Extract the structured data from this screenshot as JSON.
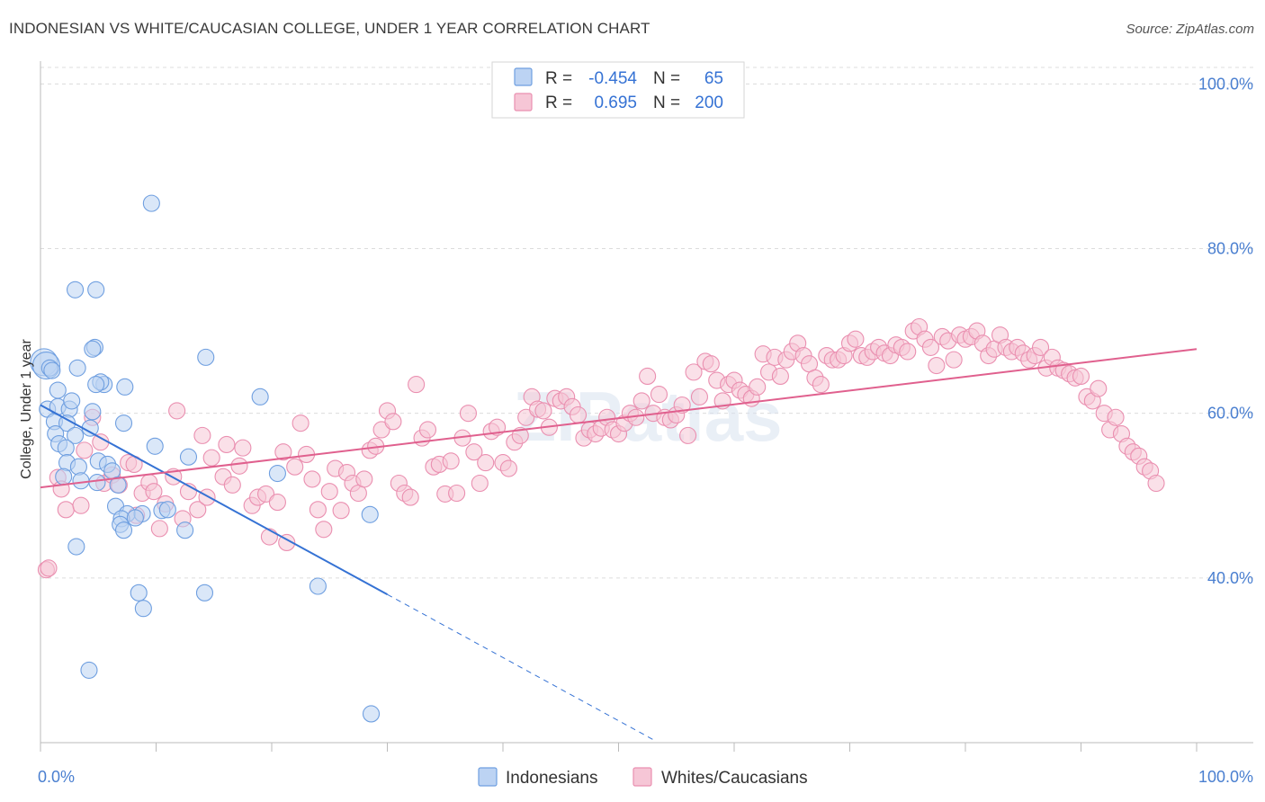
{
  "header": {
    "title": "INDONESIAN VS WHITE/CAUCASIAN COLLEGE, UNDER 1 YEAR CORRELATION CHART",
    "source": "Source: ZipAtlas.com"
  },
  "watermark": "ZIPatlas",
  "colors": {
    "indonesians": "#6f9fe0",
    "indonesians_fill": "#bcd3f3",
    "indonesians_line": "#3572d4",
    "whites": "#ea8fb0",
    "whites_fill": "#f6c6d6",
    "whites_line": "#e0608e",
    "tick_text": "#4a7fd0"
  },
  "legend": {
    "rows": [
      {
        "r_label": "R =",
        "r_value": "-0.454",
        "n_label": "N =",
        "n_value": "65"
      },
      {
        "r_label": "R =",
        "r_value": "0.695",
        "n_label": "N =",
        "n_value": "200"
      }
    ]
  },
  "chart_data": {
    "type": "scatter",
    "ylabel": "College, Under 1 year",
    "xlabel": "",
    "x_tick_labels": [
      "0.0%",
      "100.0%"
    ],
    "y_tick_labels": [
      "40.0%",
      "60.0%",
      "80.0%",
      "100.0%"
    ],
    "xlim": [
      0,
      100
    ],
    "ylim": [
      20,
      102
    ],
    "series": [
      {
        "name": "Indonesians",
        "trend": {
          "x": [
            0,
            30
          ],
          "y": [
            61.0,
            38.0
          ],
          "dashed_to_x": 53
        },
        "points": [
          [
            0.3,
            66.2
          ],
          [
            0.5,
            65.8
          ],
          [
            0.8,
            65.5
          ],
          [
            1.0,
            65.2
          ],
          [
            0.6,
            60.5
          ],
          [
            1.5,
            60.8
          ],
          [
            2.5,
            60.5
          ],
          [
            1.2,
            59.0
          ],
          [
            2.3,
            58.8
          ],
          [
            3.0,
            57.3
          ],
          [
            1.3,
            57.5
          ],
          [
            1.6,
            56.3
          ],
          [
            2.2,
            55.8
          ],
          [
            4.5,
            60.2
          ],
          [
            2.7,
            61.5
          ],
          [
            1.5,
            62.8
          ],
          [
            3.2,
            65.5
          ],
          [
            5.5,
            63.5
          ],
          [
            4.3,
            58.2
          ],
          [
            5.2,
            63.8
          ],
          [
            7.3,
            63.2
          ],
          [
            7.2,
            58.8
          ],
          [
            4.8,
            63.5
          ],
          [
            2.3,
            54.0
          ],
          [
            3.3,
            53.5
          ],
          [
            2.0,
            52.3
          ],
          [
            3.5,
            51.8
          ],
          [
            5.0,
            54.2
          ],
          [
            5.8,
            53.8
          ],
          [
            6.2,
            53.0
          ],
          [
            4.9,
            51.6
          ],
          [
            6.7,
            51.3
          ],
          [
            6.5,
            48.7
          ],
          [
            7.5,
            47.8
          ],
          [
            8.8,
            47.8
          ],
          [
            10.5,
            48.2
          ],
          [
            7.0,
            47.2
          ],
          [
            8.2,
            47.3
          ],
          [
            6.9,
            46.5
          ],
          [
            7.2,
            45.8
          ],
          [
            12.5,
            45.8
          ],
          [
            12.8,
            54.7
          ],
          [
            9.9,
            56.0
          ],
          [
            9.6,
            85.5
          ],
          [
            4.7,
            68.0
          ],
          [
            4.5,
            67.8
          ],
          [
            3.0,
            75.0
          ],
          [
            4.8,
            75.0
          ],
          [
            14.3,
            66.8
          ],
          [
            19.0,
            62.0
          ],
          [
            20.5,
            52.7
          ],
          [
            28.5,
            47.7
          ],
          [
            3.1,
            43.8
          ],
          [
            8.5,
            38.2
          ],
          [
            14.2,
            38.2
          ],
          [
            8.9,
            36.3
          ],
          [
            24.0,
            39.0
          ],
          [
            4.2,
            28.8
          ],
          [
            28.6,
            23.5
          ],
          [
            11.0,
            48.3
          ]
        ]
      },
      {
        "name": "Whites/Caucasians",
        "trend": {
          "x": [
            0,
            100
          ],
          "y": [
            51.0,
            67.8
          ]
        },
        "points": [
          [
            0.5,
            41.0
          ],
          [
            0.7,
            41.2
          ],
          [
            1.5,
            52.2
          ],
          [
            1.8,
            50.8
          ],
          [
            2.2,
            48.3
          ],
          [
            3.5,
            48.8
          ],
          [
            3.8,
            55.5
          ],
          [
            4.5,
            59.5
          ],
          [
            5.2,
            56.5
          ],
          [
            5.5,
            51.5
          ],
          [
            6.2,
            52.5
          ],
          [
            6.8,
            51.3
          ],
          [
            7.6,
            54.0
          ],
          [
            8.1,
            53.8
          ],
          [
            8.3,
            47.6
          ],
          [
            8.8,
            50.3
          ],
          [
            9.4,
            51.6
          ],
          [
            9.8,
            50.5
          ],
          [
            10.3,
            46.0
          ],
          [
            10.8,
            49.0
          ],
          [
            11.5,
            52.3
          ],
          [
            11.8,
            60.3
          ],
          [
            12.3,
            47.2
          ],
          [
            12.8,
            50.5
          ],
          [
            13.6,
            48.3
          ],
          [
            14.0,
            57.3
          ],
          [
            14.4,
            49.8
          ],
          [
            14.8,
            54.6
          ],
          [
            15.8,
            52.3
          ],
          [
            16.1,
            56.2
          ],
          [
            16.6,
            51.3
          ],
          [
            17.2,
            53.6
          ],
          [
            17.5,
            55.8
          ],
          [
            18.3,
            48.8
          ],
          [
            18.8,
            49.8
          ],
          [
            19.5,
            50.2
          ],
          [
            19.8,
            45.0
          ],
          [
            20.5,
            49.2
          ],
          [
            21.0,
            55.3
          ],
          [
            21.3,
            44.3
          ],
          [
            22.0,
            53.5
          ],
          [
            22.5,
            58.8
          ],
          [
            23.0,
            55.0
          ],
          [
            23.5,
            52.0
          ],
          [
            24.0,
            48.3
          ],
          [
            24.5,
            45.9
          ],
          [
            25.0,
            50.5
          ],
          [
            25.5,
            53.3
          ],
          [
            26.0,
            48.2
          ],
          [
            26.5,
            52.8
          ],
          [
            27.0,
            51.5
          ],
          [
            27.5,
            50.3
          ],
          [
            28.0,
            52.0
          ],
          [
            28.5,
            55.5
          ],
          [
            29.0,
            56.0
          ],
          [
            29.5,
            58.0
          ],
          [
            30.0,
            60.3
          ],
          [
            30.5,
            59.0
          ],
          [
            31.0,
            51.5
          ],
          [
            31.5,
            50.3
          ],
          [
            32.0,
            49.8
          ],
          [
            32.5,
            63.5
          ],
          [
            33.0,
            57.0
          ],
          [
            33.5,
            58.0
          ],
          [
            34.0,
            53.5
          ],
          [
            34.5,
            53.8
          ],
          [
            35.0,
            50.2
          ],
          [
            35.5,
            54.2
          ],
          [
            36.0,
            50.3
          ],
          [
            36.5,
            57.0
          ],
          [
            37.0,
            60.0
          ],
          [
            37.5,
            55.3
          ],
          [
            38.0,
            51.5
          ],
          [
            38.5,
            54.0
          ],
          [
            39.0,
            57.8
          ],
          [
            39.5,
            58.3
          ],
          [
            40.0,
            54.0
          ],
          [
            40.5,
            53.3
          ],
          [
            41.0,
            56.5
          ],
          [
            41.5,
            57.3
          ],
          [
            42.0,
            59.5
          ],
          [
            42.5,
            62.0
          ],
          [
            43.0,
            60.5
          ],
          [
            43.5,
            60.3
          ],
          [
            44.0,
            58.3
          ],
          [
            44.5,
            61.8
          ],
          [
            45.0,
            61.5
          ],
          [
            45.5,
            62.0
          ],
          [
            46.0,
            60.8
          ],
          [
            46.5,
            59.8
          ],
          [
            47.0,
            57.0
          ],
          [
            47.5,
            58.0
          ],
          [
            48.0,
            57.5
          ],
          [
            48.5,
            58.2
          ],
          [
            49.0,
            59.5
          ],
          [
            49.5,
            58.0
          ],
          [
            50.0,
            57.5
          ],
          [
            50.5,
            58.8
          ],
          [
            51.0,
            60.0
          ],
          [
            51.5,
            59.5
          ],
          [
            52.0,
            61.5
          ],
          [
            52.5,
            64.5
          ],
          [
            53.0,
            60.0
          ],
          [
            53.5,
            62.3
          ],
          [
            54.0,
            59.5
          ],
          [
            54.5,
            59.2
          ],
          [
            55.0,
            59.8
          ],
          [
            55.5,
            61.0
          ],
          [
            56.0,
            57.3
          ],
          [
            56.5,
            65.0
          ],
          [
            57.0,
            62.0
          ],
          [
            57.5,
            66.3
          ],
          [
            58.0,
            66.0
          ],
          [
            58.5,
            64.0
          ],
          [
            59.0,
            61.5
          ],
          [
            59.5,
            63.5
          ],
          [
            60.0,
            64.0
          ],
          [
            60.5,
            62.8
          ],
          [
            61.0,
            62.3
          ],
          [
            61.5,
            61.8
          ],
          [
            62.0,
            63.2
          ],
          [
            62.5,
            67.2
          ],
          [
            63.0,
            65.0
          ],
          [
            63.5,
            66.8
          ],
          [
            64.0,
            64.5
          ],
          [
            64.5,
            66.5
          ],
          [
            65.0,
            67.5
          ],
          [
            65.5,
            68.5
          ],
          [
            66.0,
            67.0
          ],
          [
            66.5,
            66.0
          ],
          [
            67.0,
            64.3
          ],
          [
            67.5,
            63.5
          ],
          [
            68.0,
            67.0
          ],
          [
            68.5,
            66.5
          ],
          [
            69.0,
            66.5
          ],
          [
            69.5,
            67.0
          ],
          [
            70.0,
            68.5
          ],
          [
            70.5,
            69.0
          ],
          [
            71.0,
            67.0
          ],
          [
            71.5,
            66.8
          ],
          [
            72.0,
            67.5
          ],
          [
            72.5,
            68.0
          ],
          [
            73.0,
            67.3
          ],
          [
            73.5,
            67.0
          ],
          [
            74.0,
            68.3
          ],
          [
            74.5,
            68.0
          ],
          [
            75.0,
            67.5
          ],
          [
            75.5,
            70.0
          ],
          [
            76.0,
            70.5
          ],
          [
            76.5,
            69.0
          ],
          [
            77.0,
            68.0
          ],
          [
            77.5,
            65.8
          ],
          [
            78.0,
            69.3
          ],
          [
            78.5,
            68.8
          ],
          [
            79.0,
            66.5
          ],
          [
            79.5,
            69.5
          ],
          [
            80.0,
            69.0
          ],
          [
            80.5,
            69.3
          ],
          [
            81.0,
            70.0
          ],
          [
            81.5,
            68.5
          ],
          [
            82.0,
            67.0
          ],
          [
            82.5,
            67.8
          ],
          [
            83.0,
            69.5
          ],
          [
            83.5,
            68.0
          ],
          [
            84.0,
            67.5
          ],
          [
            84.5,
            68.0
          ],
          [
            85.0,
            67.3
          ],
          [
            85.5,
            66.5
          ],
          [
            86.0,
            67.0
          ],
          [
            86.5,
            68.0
          ],
          [
            87.0,
            65.5
          ],
          [
            87.5,
            66.8
          ],
          [
            88.0,
            65.5
          ],
          [
            88.5,
            65.2
          ],
          [
            89.0,
            64.8
          ],
          [
            89.5,
            64.3
          ],
          [
            90.0,
            64.5
          ],
          [
            90.5,
            62.0
          ],
          [
            91.0,
            61.5
          ],
          [
            91.5,
            63.0
          ],
          [
            92.0,
            60.0
          ],
          [
            92.5,
            58.0
          ],
          [
            93.0,
            59.5
          ],
          [
            93.5,
            57.5
          ],
          [
            94.0,
            56.0
          ],
          [
            94.5,
            55.3
          ],
          [
            95.0,
            54.8
          ],
          [
            95.5,
            53.5
          ],
          [
            96.0,
            53.0
          ],
          [
            96.5,
            51.5
          ]
        ]
      }
    ]
  },
  "bottom_legend": [
    {
      "label": "Indonesians"
    },
    {
      "label": "Whites/Caucasians"
    }
  ]
}
